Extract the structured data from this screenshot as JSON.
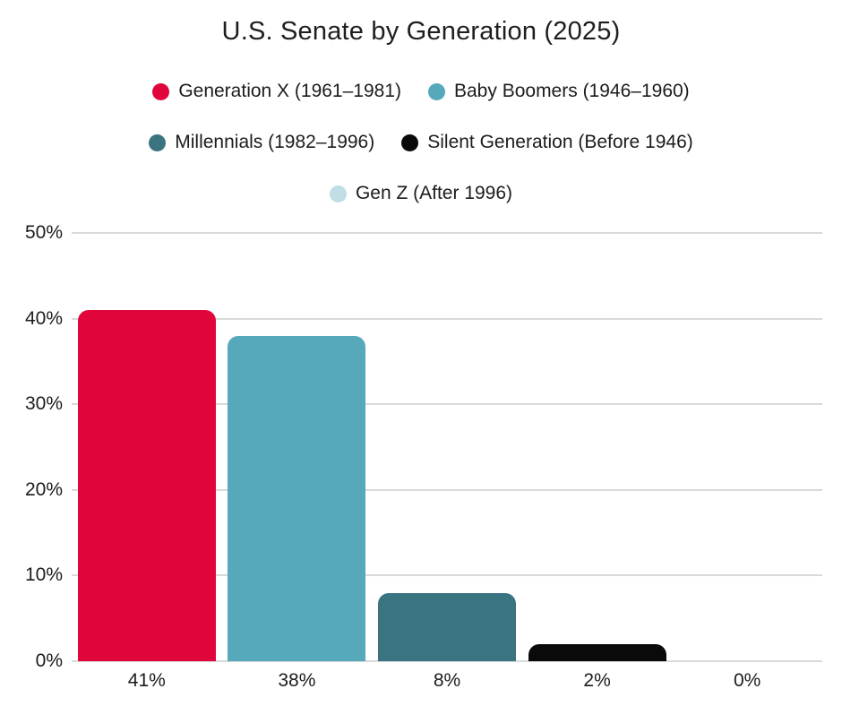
{
  "title": "U.S. Senate by Generation (2025)",
  "chart_data": {
    "type": "bar",
    "title": "U.S. Senate by Generation (2025)",
    "categories": [
      "Generation X (1961–1981)",
      "Baby Boomers (1946–1960)",
      "Millennials (1982–1996)",
      "Silent Generation (Before 1946)",
      "Gen Z (After 1996)"
    ],
    "values": [
      41,
      38,
      8,
      2,
      0
    ],
    "bar_labels": [
      "41%",
      "38%",
      "8%",
      "2%",
      "0%"
    ],
    "colors": [
      "#E0063C",
      "#55A9BA",
      "#3A7480",
      "#0A0A0A",
      "#BFDEE6"
    ],
    "xlabel": "",
    "ylabel": "",
    "ylim": [
      0,
      50
    ],
    "ytick_step": 10,
    "ytick_labels": [
      "0%",
      "10%",
      "20%",
      "30%",
      "40%",
      "50%"
    ],
    "grid": true,
    "legend_position": "top",
    "legend_rows": [
      [
        0,
        1
      ],
      [
        2,
        3
      ],
      [
        4
      ]
    ]
  },
  "style": {
    "background": "#FFFFFF",
    "grid_color": "#D9D9D9",
    "text_color": "#1C1C1C"
  }
}
